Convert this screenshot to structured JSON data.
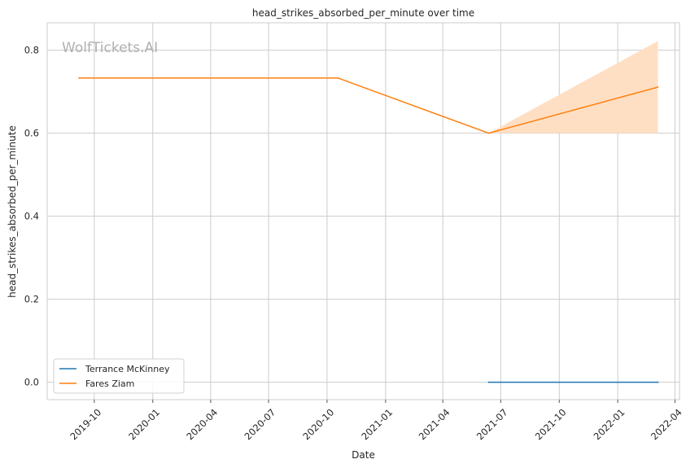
{
  "chart_data": {
    "type": "line",
    "title": "head_strikes_absorbed_per_minute over time",
    "xlabel": "Date",
    "ylabel": "head_strikes_absorbed_per_minute",
    "watermark": "WolfTickets.AI",
    "x_ticks": [
      "2019-10",
      "2020-01",
      "2020-04",
      "2020-07",
      "2020-10",
      "2021-01",
      "2021-04",
      "2021-07",
      "2021-10",
      "2022-01",
      "2022-04"
    ],
    "y_ticks": [
      "0.0",
      "0.2",
      "0.4",
      "0.6",
      "0.8"
    ],
    "xlim": [
      "2019-07-19",
      "2022-04-08"
    ],
    "ylim": [
      -0.042,
      0.866
    ],
    "grid": true,
    "legend_position": "lower-left",
    "series": [
      {
        "name": "Terrance McKinney",
        "color": "#1f77b4",
        "points": [
          {
            "x": "2021-06-12",
            "y": 0.0
          },
          {
            "x": "2022-03-05",
            "y": 0.0
          }
        ]
      },
      {
        "name": "Fares Ziam",
        "color": "#ff7f0e",
        "points": [
          {
            "x": "2019-09-07",
            "y": 0.733
          },
          {
            "x": "2020-10-18",
            "y": 0.733
          },
          {
            "x": "2021-06-12",
            "y": 0.6
          },
          {
            "x": "2022-03-05",
            "y": 0.711
          }
        ],
        "band": {
          "color": "#ffdfc3",
          "points": [
            {
              "x": "2021-06-12",
              "low": 0.6,
              "high": 0.6
            },
            {
              "x": "2022-03-05",
              "low": 0.6,
              "high": 0.822
            }
          ]
        }
      }
    ]
  }
}
